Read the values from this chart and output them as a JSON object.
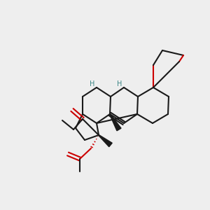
{
  "bg_color": "#eeeeee",
  "K": "#1a1a1a",
  "R": "#cc0000",
  "T": "#3a8585",
  "lw": 1.5
}
